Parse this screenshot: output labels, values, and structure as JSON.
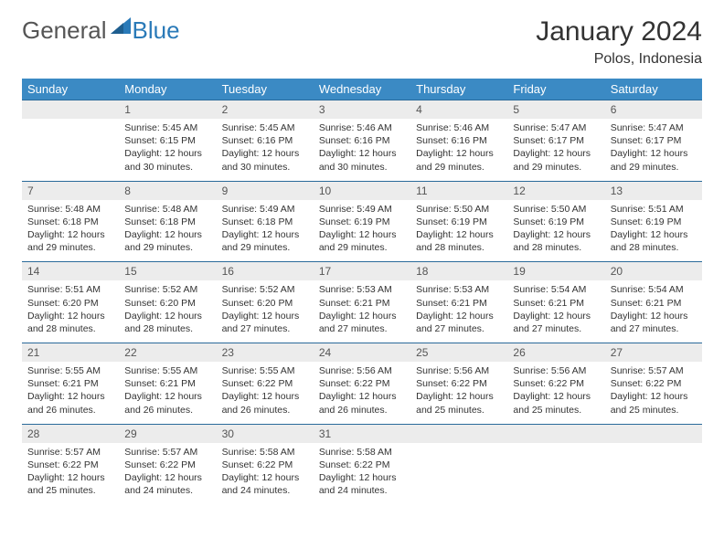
{
  "logo": {
    "text1": "General",
    "text2": "Blue"
  },
  "title": "January 2024",
  "location": "Polos, Indonesia",
  "colors": {
    "header_bg": "#3b8ac4",
    "header_text": "#ffffff",
    "daynum_bg": "#ececec",
    "row_border": "#2a6a9a",
    "body_text": "#333333",
    "logo_blue": "#2a7ab8",
    "logo_gray": "#555555"
  },
  "weekdays": [
    "Sunday",
    "Monday",
    "Tuesday",
    "Wednesday",
    "Thursday",
    "Friday",
    "Saturday"
  ],
  "weeks": [
    [
      {
        "n": "",
        "sr": "",
        "ss": "",
        "dl": ""
      },
      {
        "n": "1",
        "sr": "Sunrise: 5:45 AM",
        "ss": "Sunset: 6:15 PM",
        "dl": "Daylight: 12 hours and 30 minutes."
      },
      {
        "n": "2",
        "sr": "Sunrise: 5:45 AM",
        "ss": "Sunset: 6:16 PM",
        "dl": "Daylight: 12 hours and 30 minutes."
      },
      {
        "n": "3",
        "sr": "Sunrise: 5:46 AM",
        "ss": "Sunset: 6:16 PM",
        "dl": "Daylight: 12 hours and 30 minutes."
      },
      {
        "n": "4",
        "sr": "Sunrise: 5:46 AM",
        "ss": "Sunset: 6:16 PM",
        "dl": "Daylight: 12 hours and 29 minutes."
      },
      {
        "n": "5",
        "sr": "Sunrise: 5:47 AM",
        "ss": "Sunset: 6:17 PM",
        "dl": "Daylight: 12 hours and 29 minutes."
      },
      {
        "n": "6",
        "sr": "Sunrise: 5:47 AM",
        "ss": "Sunset: 6:17 PM",
        "dl": "Daylight: 12 hours and 29 minutes."
      }
    ],
    [
      {
        "n": "7",
        "sr": "Sunrise: 5:48 AM",
        "ss": "Sunset: 6:18 PM",
        "dl": "Daylight: 12 hours and 29 minutes."
      },
      {
        "n": "8",
        "sr": "Sunrise: 5:48 AM",
        "ss": "Sunset: 6:18 PM",
        "dl": "Daylight: 12 hours and 29 minutes."
      },
      {
        "n": "9",
        "sr": "Sunrise: 5:49 AM",
        "ss": "Sunset: 6:18 PM",
        "dl": "Daylight: 12 hours and 29 minutes."
      },
      {
        "n": "10",
        "sr": "Sunrise: 5:49 AM",
        "ss": "Sunset: 6:19 PM",
        "dl": "Daylight: 12 hours and 29 minutes."
      },
      {
        "n": "11",
        "sr": "Sunrise: 5:50 AM",
        "ss": "Sunset: 6:19 PM",
        "dl": "Daylight: 12 hours and 28 minutes."
      },
      {
        "n": "12",
        "sr": "Sunrise: 5:50 AM",
        "ss": "Sunset: 6:19 PM",
        "dl": "Daylight: 12 hours and 28 minutes."
      },
      {
        "n": "13",
        "sr": "Sunrise: 5:51 AM",
        "ss": "Sunset: 6:19 PM",
        "dl": "Daylight: 12 hours and 28 minutes."
      }
    ],
    [
      {
        "n": "14",
        "sr": "Sunrise: 5:51 AM",
        "ss": "Sunset: 6:20 PM",
        "dl": "Daylight: 12 hours and 28 minutes."
      },
      {
        "n": "15",
        "sr": "Sunrise: 5:52 AM",
        "ss": "Sunset: 6:20 PM",
        "dl": "Daylight: 12 hours and 28 minutes."
      },
      {
        "n": "16",
        "sr": "Sunrise: 5:52 AM",
        "ss": "Sunset: 6:20 PM",
        "dl": "Daylight: 12 hours and 27 minutes."
      },
      {
        "n": "17",
        "sr": "Sunrise: 5:53 AM",
        "ss": "Sunset: 6:21 PM",
        "dl": "Daylight: 12 hours and 27 minutes."
      },
      {
        "n": "18",
        "sr": "Sunrise: 5:53 AM",
        "ss": "Sunset: 6:21 PM",
        "dl": "Daylight: 12 hours and 27 minutes."
      },
      {
        "n": "19",
        "sr": "Sunrise: 5:54 AM",
        "ss": "Sunset: 6:21 PM",
        "dl": "Daylight: 12 hours and 27 minutes."
      },
      {
        "n": "20",
        "sr": "Sunrise: 5:54 AM",
        "ss": "Sunset: 6:21 PM",
        "dl": "Daylight: 12 hours and 27 minutes."
      }
    ],
    [
      {
        "n": "21",
        "sr": "Sunrise: 5:55 AM",
        "ss": "Sunset: 6:21 PM",
        "dl": "Daylight: 12 hours and 26 minutes."
      },
      {
        "n": "22",
        "sr": "Sunrise: 5:55 AM",
        "ss": "Sunset: 6:21 PM",
        "dl": "Daylight: 12 hours and 26 minutes."
      },
      {
        "n": "23",
        "sr": "Sunrise: 5:55 AM",
        "ss": "Sunset: 6:22 PM",
        "dl": "Daylight: 12 hours and 26 minutes."
      },
      {
        "n": "24",
        "sr": "Sunrise: 5:56 AM",
        "ss": "Sunset: 6:22 PM",
        "dl": "Daylight: 12 hours and 26 minutes."
      },
      {
        "n": "25",
        "sr": "Sunrise: 5:56 AM",
        "ss": "Sunset: 6:22 PM",
        "dl": "Daylight: 12 hours and 25 minutes."
      },
      {
        "n": "26",
        "sr": "Sunrise: 5:56 AM",
        "ss": "Sunset: 6:22 PM",
        "dl": "Daylight: 12 hours and 25 minutes."
      },
      {
        "n": "27",
        "sr": "Sunrise: 5:57 AM",
        "ss": "Sunset: 6:22 PM",
        "dl": "Daylight: 12 hours and 25 minutes."
      }
    ],
    [
      {
        "n": "28",
        "sr": "Sunrise: 5:57 AM",
        "ss": "Sunset: 6:22 PM",
        "dl": "Daylight: 12 hours and 25 minutes."
      },
      {
        "n": "29",
        "sr": "Sunrise: 5:57 AM",
        "ss": "Sunset: 6:22 PM",
        "dl": "Daylight: 12 hours and 24 minutes."
      },
      {
        "n": "30",
        "sr": "Sunrise: 5:58 AM",
        "ss": "Sunset: 6:22 PM",
        "dl": "Daylight: 12 hours and 24 minutes."
      },
      {
        "n": "31",
        "sr": "Sunrise: 5:58 AM",
        "ss": "Sunset: 6:22 PM",
        "dl": "Daylight: 12 hours and 24 minutes."
      },
      {
        "n": "",
        "sr": "",
        "ss": "",
        "dl": ""
      },
      {
        "n": "",
        "sr": "",
        "ss": "",
        "dl": ""
      },
      {
        "n": "",
        "sr": "",
        "ss": "",
        "dl": ""
      }
    ]
  ]
}
